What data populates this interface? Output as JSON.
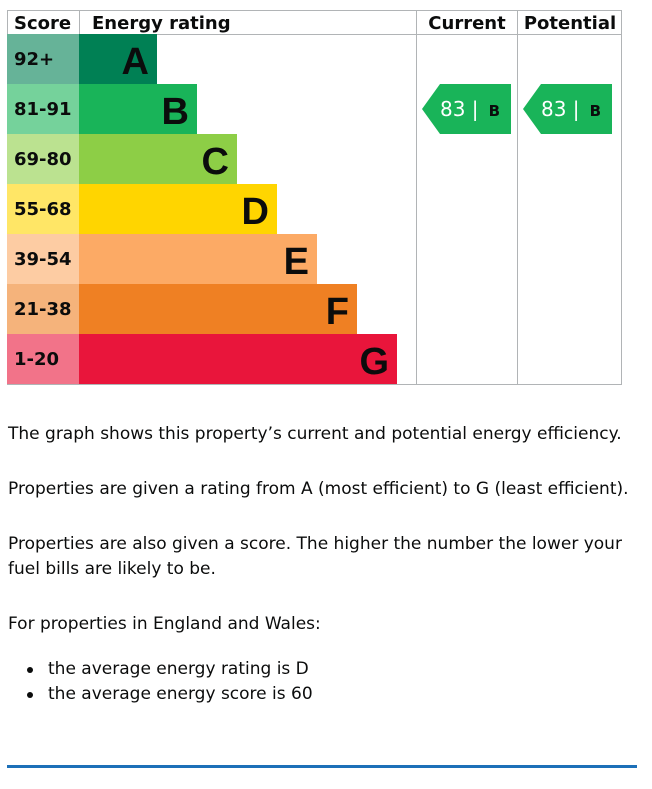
{
  "chart_data": {
    "type": "bar",
    "headers": {
      "score": "Score",
      "rating": "Energy rating",
      "current": "Current",
      "potential": "Potential"
    },
    "bands": [
      {
        "letter": "A",
        "range": "92+",
        "color": "#008054",
        "score_color": "#66b398"
      },
      {
        "letter": "B",
        "range": "81-91",
        "color": "#19b459",
        "score_color": "#75d29b"
      },
      {
        "letter": "C",
        "range": "69-80",
        "color": "#8dce46",
        "score_color": "#bbe290"
      },
      {
        "letter": "D",
        "range": "55-68",
        "color": "#ffd500",
        "score_color": "#ffe666"
      },
      {
        "letter": "E",
        "range": "39-54",
        "color": "#fcaa65",
        "score_color": "#fdcca3"
      },
      {
        "letter": "F",
        "range": "21-38",
        "color": "#ef8023",
        "score_color": "#f5b37b"
      },
      {
        "letter": "G",
        "range": "1-20",
        "color": "#e9153b",
        "score_color": "#f27389"
      }
    ],
    "current": {
      "score": 83,
      "letter": "B",
      "label": "83 | B"
    },
    "potential": {
      "score": 83,
      "letter": "B",
      "label": "83 | B"
    }
  },
  "text": {
    "p1": "The graph shows this property’s current and potential energy efficiency.",
    "p2": "Properties are given a rating from A (most efficient) to G (least efficient).",
    "p3": "Properties are also given a score. The higher the number the lower your fuel bills are likely to be.",
    "p4": "For properties in England and Wales:",
    "bullets": [
      "the average energy rating is D",
      "the average energy score is 60"
    ]
  }
}
